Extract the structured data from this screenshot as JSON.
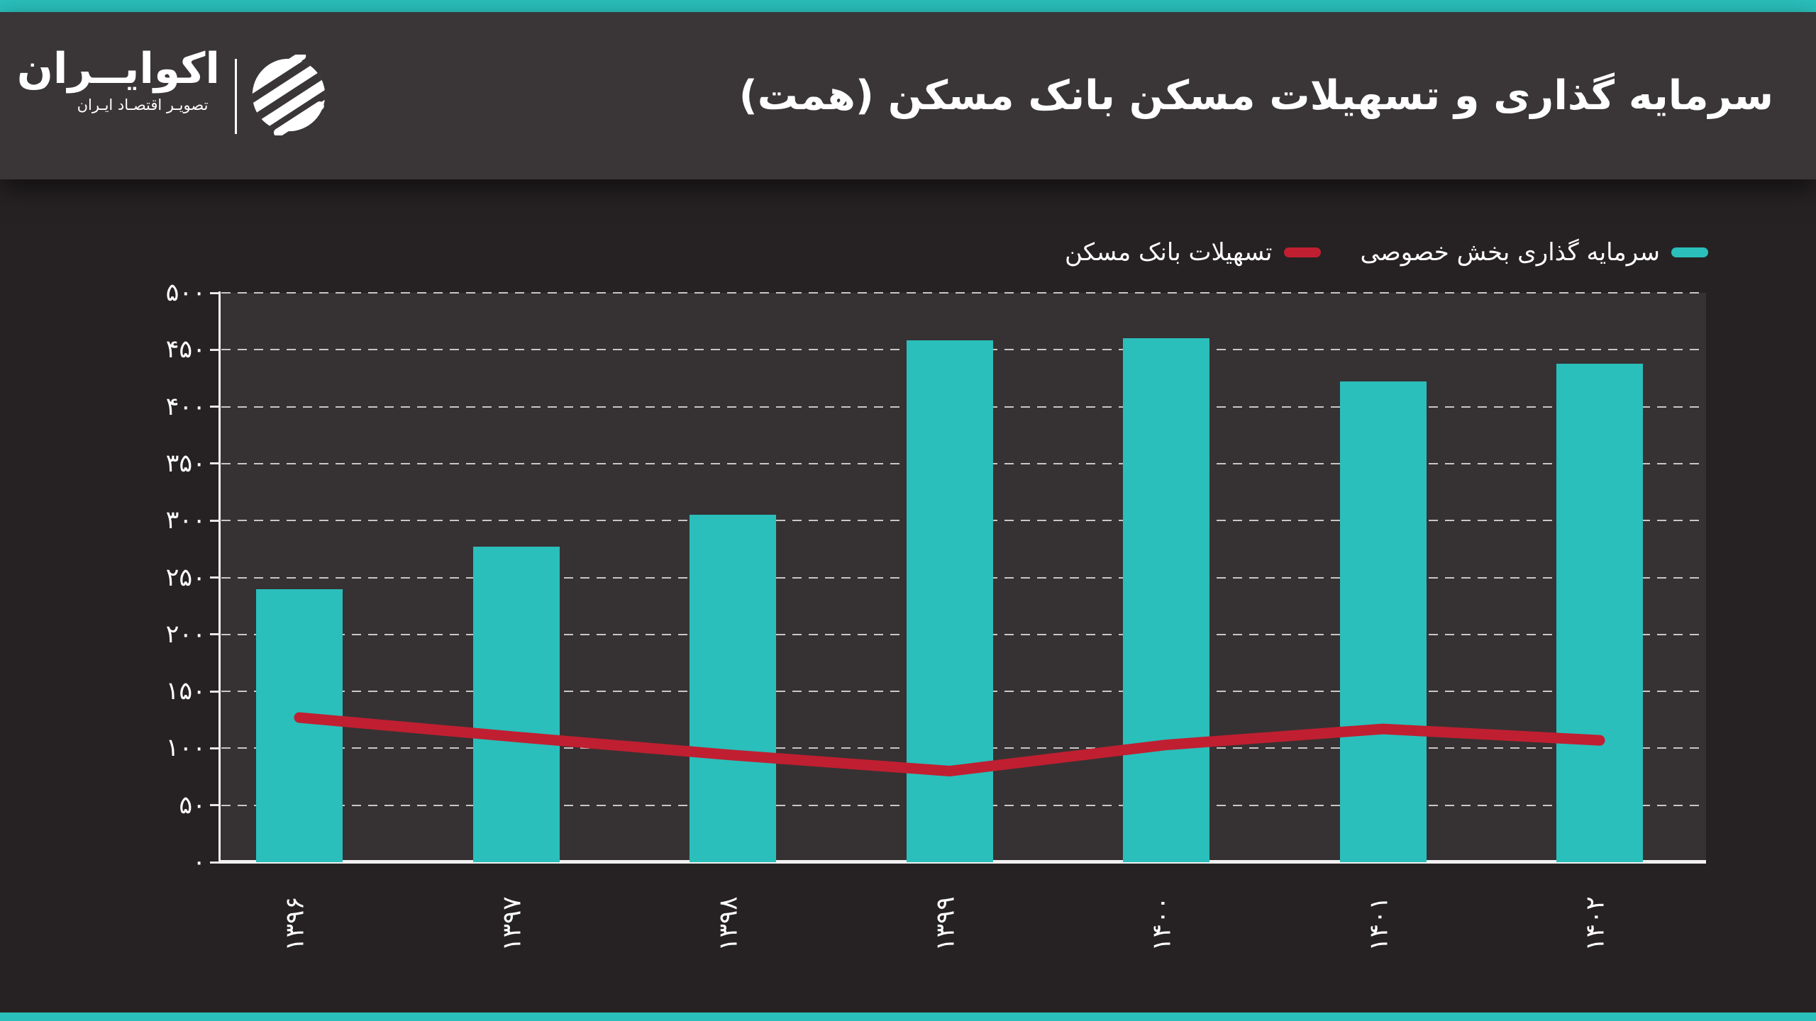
{
  "page": {
    "background": "#262223",
    "header_background": "#3a3637",
    "plot_background": "#363233",
    "accent_strip_color": "#2abfbb",
    "text_color": "#ffffff"
  },
  "header": {
    "title": "سرمایه گذاری و تسهیلات مسکن بانک مسکن (همت)",
    "logo_name": "اکوایــران",
    "logo_tagline": "تصویـر اقتصـاد ایـران"
  },
  "chart_data": {
    "type": "bar",
    "title": "سرمایه گذاری و تسهیلات مسکن بانک مسکن (همت)",
    "unit": "همت",
    "categories": [
      "۱۳۹۶",
      "۱۳۹۷",
      "۱۳۹۸",
      "۱۳۹۹",
      "۱۴۰۰",
      "۱۴۰۱",
      "۱۴۰۲"
    ],
    "series": [
      {
        "name": "سرمایه گذاری بخش خصوصی",
        "type": "bar",
        "color": "#2abfbb",
        "values": [
          240,
          277,
          305,
          458,
          460,
          422,
          438
        ]
      },
      {
        "name": "تسهیلات بانک مسکن",
        "type": "line",
        "color": "#c01f31",
        "values": [
          127,
          110,
          94,
          80,
          103,
          117,
          107
        ]
      }
    ],
    "xlabel": "",
    "ylabel": "",
    "ylim": [
      0,
      500
    ],
    "ytick_step": 50,
    "ytick_labels": [
      "۰",
      "۵۰",
      "۱۰۰",
      "۱۵۰",
      "۲۰۰",
      "۲۵۰",
      "۳۰۰",
      "۳۵۰",
      "۴۰۰",
      "۴۵۰",
      "۵۰۰"
    ],
    "grid": "dashed-horizontal",
    "legend_position": "top-right"
  }
}
